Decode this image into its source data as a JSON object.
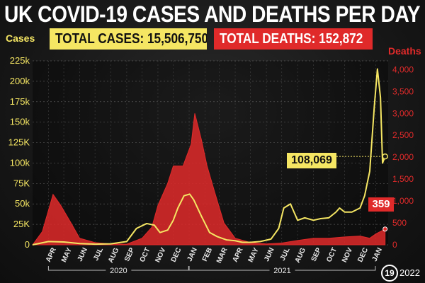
{
  "header": {
    "title": "UK COVID-19 CASES AND DEATHS PER DAY",
    "total_cases_label": "TOTAL CASES: 15,506,750",
    "total_deaths_label": "TOTAL DEATHS: 152,872"
  },
  "callouts": {
    "latest_cases": "108,069",
    "latest_deaths": "359"
  },
  "badge": {
    "number": "19",
    "year": "2022"
  },
  "colors": {
    "cases": "#f5e663",
    "deaths": "#e02a2a",
    "background": "#181818"
  },
  "chart_data": {
    "type": "line",
    "title": "UK COVID-19 CASES AND DEATHS PER DAY",
    "ylabel": "Cases",
    "y2label": "Deaths",
    "ylim": [
      0,
      225000
    ],
    "y2lim": [
      0,
      4200
    ],
    "y_ticks": [
      "0",
      "25K",
      "50k",
      "75K",
      "100k",
      "125K",
      "150k",
      "175k",
      "200k",
      "225k"
    ],
    "y2_ticks": [
      "0",
      "500",
      "1,000",
      "1,500",
      "2,000",
      "2,500",
      "3,000",
      "3,500",
      "4,000"
    ],
    "months": [
      "APR",
      "MAY",
      "JUN",
      "JUL",
      "AUG",
      "SEP",
      "OCT",
      "NOV",
      "DEC",
      "JAN",
      "FEB",
      "MAR",
      "APR",
      "MAY",
      "JUN",
      "JUL",
      "AUG",
      "SEP",
      "OCT",
      "NOV",
      "DEC",
      "JAN"
    ],
    "years": [
      "2020",
      "2021"
    ],
    "grid": true,
    "series": [
      {
        "name": "Cases",
        "axis": "left",
        "x": [
          "2020-03-01",
          "2020-04-01",
          "2020-05-01",
          "2020-06-01",
          "2020-07-01",
          "2020-08-01",
          "2020-09-01",
          "2020-09-20",
          "2020-10-10",
          "2020-10-25",
          "2020-11-05",
          "2020-11-20",
          "2020-12-01",
          "2020-12-10",
          "2020-12-22",
          "2021-01-02",
          "2021-01-10",
          "2021-01-25",
          "2021-02-10",
          "2021-02-25",
          "2021-03-15",
          "2021-04-01",
          "2021-04-15",
          "2021-05-01",
          "2021-05-20",
          "2021-06-10",
          "2021-06-25",
          "2021-07-05",
          "2021-07-18",
          "2021-08-01",
          "2021-08-15",
          "2021-09-01",
          "2021-09-15",
          "2021-10-01",
          "2021-10-15",
          "2021-10-22",
          "2021-11-01",
          "2021-11-15",
          "2021-12-01",
          "2021-12-10",
          "2021-12-20",
          "2021-12-29",
          "2022-01-04",
          "2022-01-10",
          "2022-01-14",
          "2022-01-19"
        ],
        "values": [
          0,
          4000,
          3500,
          1500,
          800,
          1200,
          4000,
          20000,
          26000,
          24000,
          15000,
          18000,
          30000,
          45000,
          60000,
          62000,
          55000,
          35000,
          15000,
          10000,
          6000,
          5000,
          3000,
          3000,
          4000,
          7000,
          20000,
          45000,
          50000,
          30000,
          33000,
          30000,
          32000,
          33000,
          40000,
          45000,
          40000,
          40000,
          45000,
          60000,
          90000,
          170000,
          215000,
          180000,
          100000,
          108069
        ]
      },
      {
        "name": "Deaths",
        "axis": "right",
        "x": [
          "2020-03-01",
          "2020-03-20",
          "2020-04-10",
          "2020-04-25",
          "2020-05-15",
          "2020-06-01",
          "2020-07-01",
          "2020-08-01",
          "2020-09-01",
          "2020-10-01",
          "2020-10-20",
          "2020-11-01",
          "2020-11-20",
          "2020-12-01",
          "2020-12-20",
          "2021-01-05",
          "2021-01-12",
          "2021-01-25",
          "2021-02-05",
          "2021-02-20",
          "2021-03-10",
          "2021-04-01",
          "2021-05-01",
          "2021-06-01",
          "2021-07-01",
          "2021-08-01",
          "2021-09-01",
          "2021-10-01",
          "2021-11-01",
          "2021-12-01",
          "2021-12-20",
          "2022-01-01",
          "2022-01-19"
        ],
        "values": [
          0,
          300,
          1150,
          900,
          500,
          150,
          50,
          20,
          15,
          150,
          400,
          900,
          1400,
          1800,
          1800,
          2300,
          3000,
          2400,
          1800,
          1200,
          500,
          150,
          50,
          20,
          40,
          100,
          150,
          150,
          180,
          200,
          150,
          250,
          359
        ]
      }
    ],
    "annotations": [
      "108,069",
      "359"
    ]
  }
}
